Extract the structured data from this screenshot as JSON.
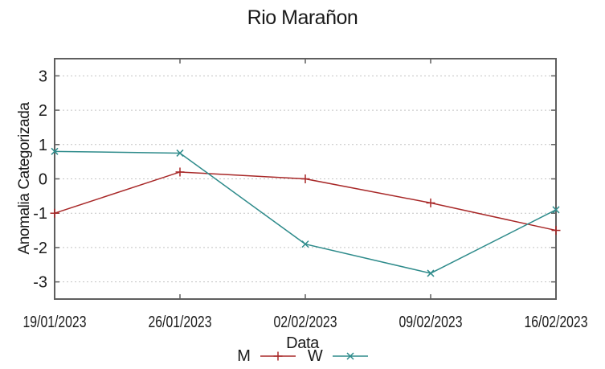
{
  "chart_data": {
    "type": "line",
    "title": "Rio Marañon",
    "xlabel": "Data",
    "ylabel": "Anomalia Categorizada",
    "categories": [
      "19/01/2023",
      "26/01/2023",
      "02/02/2023",
      "09/02/2023",
      "16/02/2023"
    ],
    "series": [
      {
        "name": "M",
        "color": "#a82828",
        "marker": "plus",
        "values": [
          -1.0,
          0.2,
          0.0,
          -0.7,
          -1.5
        ]
      },
      {
        "name": "W",
        "color": "#2e8b8b",
        "marker": "cross",
        "values": [
          0.8,
          0.75,
          -1.9,
          -2.75,
          -0.9
        ]
      }
    ],
    "ylim": [
      -3.5,
      3.5
    ],
    "yticks": [
      -3,
      -2,
      -1,
      0,
      1,
      2,
      3
    ],
    "grid": {
      "horizontal": "dashed",
      "vertical": "none",
      "color": "#c3c3c3"
    },
    "legend_position": "bottom-center",
    "axis_color": "#5f5f5f",
    "text_color": "#1a1a1a"
  }
}
